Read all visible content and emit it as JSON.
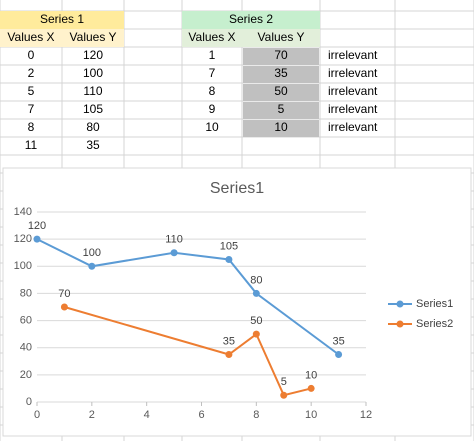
{
  "tables": [
    {
      "title": "Series 1",
      "header": [
        "Values X",
        "Values Y"
      ],
      "rows": [
        [
          0,
          120
        ],
        [
          2,
          100
        ],
        [
          5,
          110
        ],
        [
          7,
          105
        ],
        [
          8,
          80
        ],
        [
          11,
          35
        ]
      ]
    },
    {
      "title": "Series 2",
      "header": [
        "Values X",
        "Values Y"
      ],
      "rows": [
        [
          1,
          70,
          "irrelevant"
        ],
        [
          7,
          35,
          "irrelevant"
        ],
        [
          8,
          50,
          "irrelevant"
        ],
        [
          9,
          5,
          "irrelevant"
        ],
        [
          10,
          10,
          "irrelevant"
        ]
      ]
    }
  ],
  "chart_data": {
    "type": "scatter",
    "title": "Series1",
    "series": [
      {
        "name": "Series1",
        "color": "#5b9bd5",
        "x": [
          0,
          2,
          5,
          7,
          8,
          11
        ],
        "values": [
          120,
          100,
          110,
          105,
          80,
          35
        ]
      },
      {
        "name": "Series2",
        "color": "#ed7d31",
        "x": [
          1,
          7,
          8,
          9,
          10
        ],
        "values": [
          70,
          35,
          50,
          5,
          10
        ]
      }
    ],
    "xlim": [
      0,
      12
    ],
    "xticks": [
      0,
      2,
      4,
      6,
      8,
      10,
      12
    ],
    "ylim": [
      0,
      140
    ],
    "yticks": [
      0,
      20,
      40,
      60,
      80,
      100,
      120,
      140
    ],
    "grid": true,
    "lines": true,
    "data_labels": true,
    "legend": "right"
  }
}
